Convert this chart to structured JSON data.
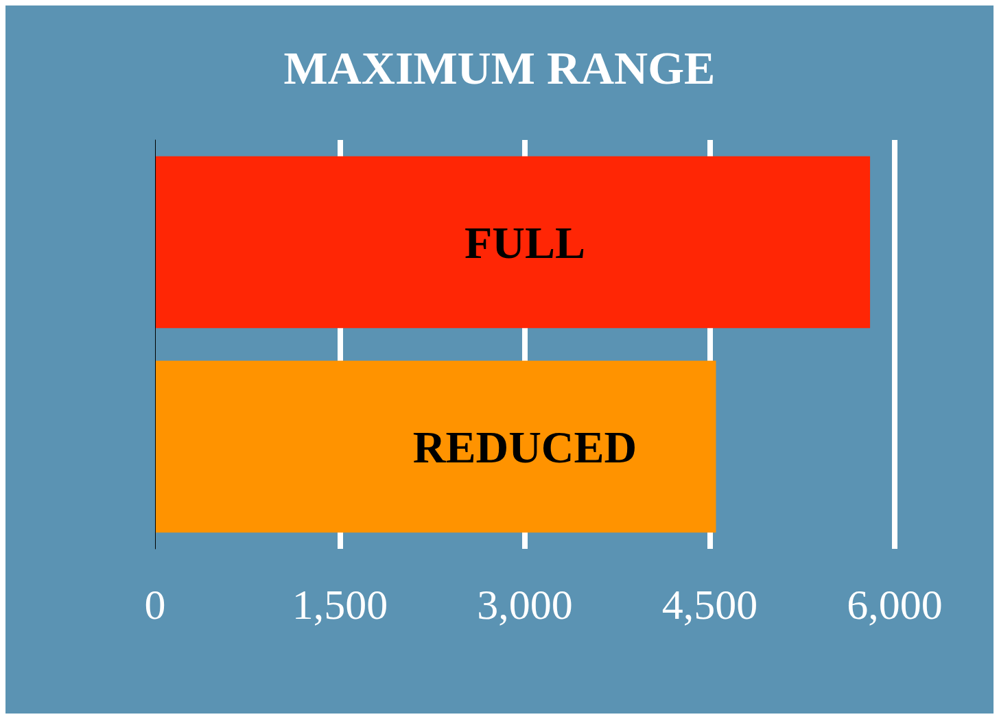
{
  "chart_data": {
    "type": "bar",
    "orientation": "horizontal",
    "title": "MAXIMUM RANGE",
    "categories": [
      "FULL",
      "REDUCED"
    ],
    "values": [
      5800,
      4550
    ],
    "colors": [
      "#ff2605",
      "#ff9300"
    ],
    "xlim": [
      0,
      6000
    ],
    "xticks": [
      0,
      {
        "value": 1500,
        "label": "1,500"
      },
      {
        "value": 3000,
        "label": "3,000"
      },
      {
        "value": 4500,
        "label": "4,500"
      },
      {
        "value": 6000,
        "label": "6,000"
      }
    ],
    "grid": "x"
  }
}
